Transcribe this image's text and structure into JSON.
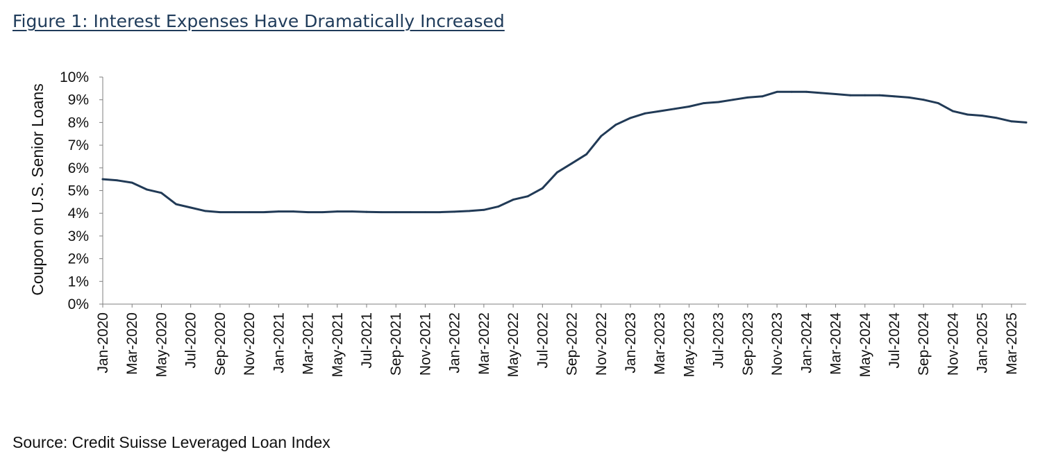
{
  "figure": {
    "title": "Figure 1: Interest Expenses Have Dramatically Increased",
    "source": "Source: Credit Suisse Leveraged Loan Index"
  },
  "chart_data": {
    "type": "line",
    "title": "",
    "xlabel": "",
    "ylabel": "Coupon on U.S. Senior Loans",
    "ylim": [
      0,
      10
    ],
    "y_ticks": [
      "0%",
      "1%",
      "2%",
      "3%",
      "4%",
      "5%",
      "6%",
      "7%",
      "8%",
      "9%",
      "10%"
    ],
    "x_range": [
      "2020-01",
      "2025-04"
    ],
    "x_tick_labels": [
      "Jan-2020",
      "Mar-2020",
      "May-2020",
      "Jul-2020",
      "Sep-2020",
      "Nov-2020",
      "Jan-2021",
      "Mar-2021",
      "May-2021",
      "Jul-2021",
      "Sep-2021",
      "Nov-2021",
      "Jan-2022",
      "Mar-2022",
      "May-2022",
      "Jul-2022",
      "Sep-2022",
      "Nov-2022",
      "Jan-2023",
      "Mar-2023",
      "May-2023",
      "Jul-2023",
      "Sep-2023",
      "Nov-2023",
      "Jan-2024",
      "Mar-2024",
      "May-2024",
      "Jul-2024",
      "Sep-2024",
      "Nov-2024",
      "Jan-2025",
      "Mar-2025"
    ],
    "grid": false,
    "legend": "none",
    "line_color": "#213a56",
    "series": [
      {
        "x": [
          "2020-01",
          "2020-02",
          "2020-03",
          "2020-04",
          "2020-05",
          "2020-06",
          "2020-07",
          "2020-08",
          "2020-09",
          "2020-10",
          "2020-11",
          "2020-12",
          "2021-01",
          "2021-02",
          "2021-03",
          "2021-04",
          "2021-05",
          "2021-06",
          "2021-07",
          "2021-08",
          "2021-09",
          "2021-10",
          "2021-11",
          "2021-12",
          "2022-01",
          "2022-02",
          "2022-03",
          "2022-04",
          "2022-05",
          "2022-06",
          "2022-07",
          "2022-08",
          "2022-09",
          "2022-10",
          "2022-11",
          "2022-12",
          "2023-01",
          "2023-02",
          "2023-03",
          "2023-04",
          "2023-05",
          "2023-06",
          "2023-07",
          "2023-08",
          "2023-09",
          "2023-10",
          "2023-11",
          "2023-12",
          "2024-01",
          "2024-02",
          "2024-03",
          "2024-04",
          "2024-05",
          "2024-06",
          "2024-07",
          "2024-08",
          "2024-09",
          "2024-10",
          "2024-11",
          "2024-12",
          "2025-01",
          "2025-02",
          "2025-03",
          "2025-04"
        ],
        "values": [
          5.5,
          5.45,
          5.35,
          5.05,
          4.9,
          4.4,
          4.25,
          4.1,
          4.05,
          4.05,
          4.05,
          4.05,
          4.08,
          4.08,
          4.05,
          4.05,
          4.08,
          4.08,
          4.06,
          4.05,
          4.05,
          4.05,
          4.05,
          4.05,
          4.07,
          4.1,
          4.15,
          4.3,
          4.6,
          4.75,
          5.1,
          5.8,
          6.2,
          6.6,
          7.4,
          7.9,
          8.2,
          8.4,
          8.5,
          8.6,
          8.7,
          8.85,
          8.9,
          9.0,
          9.1,
          9.15,
          9.35,
          9.35,
          9.35,
          9.3,
          9.25,
          9.2,
          9.2,
          9.2,
          9.15,
          9.1,
          9.0,
          8.85,
          8.5,
          8.35,
          8.3,
          8.2,
          8.05,
          8.0
        ]
      }
    ]
  }
}
